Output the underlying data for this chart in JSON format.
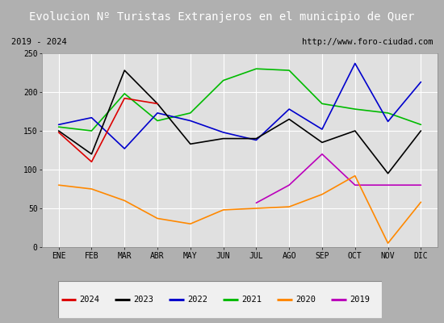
{
  "title": "Evolucion Nº Turistas Extranjeros en el municipio de Quer",
  "subtitle_left": "2019 - 2024",
  "subtitle_right": "http://www.foro-ciudad.com",
  "months": [
    "ENE",
    "FEB",
    "MAR",
    "ABR",
    "MAY",
    "JUN",
    "JUL",
    "AGO",
    "SEP",
    "OCT",
    "NOV",
    "DIC"
  ],
  "ylim": [
    0,
    250
  ],
  "yticks": [
    0,
    50,
    100,
    150,
    200,
    250
  ],
  "series": {
    "2024": {
      "color": "#dd0000",
      "data": [
        148,
        110,
        192,
        185,
        null,
        null,
        null,
        null,
        null,
        null,
        null,
        null
      ]
    },
    "2023": {
      "color": "#000000",
      "data": [
        150,
        120,
        228,
        185,
        133,
        140,
        140,
        165,
        135,
        150,
        95,
        150
      ]
    },
    "2022": {
      "color": "#0000cc",
      "data": [
        158,
        167,
        127,
        173,
        163,
        148,
        138,
        178,
        152,
        237,
        162,
        213
      ]
    },
    "2021": {
      "color": "#00bb00",
      "data": [
        155,
        150,
        198,
        163,
        173,
        215,
        230,
        228,
        185,
        178,
        173,
        158
      ]
    },
    "2020": {
      "color": "#ff8800",
      "data": [
        80,
        75,
        60,
        37,
        30,
        48,
        50,
        52,
        68,
        92,
        5,
        58
      ]
    },
    "2019": {
      "color": "#bb00bb",
      "data": [
        null,
        null,
        null,
        null,
        null,
        null,
        57,
        80,
        120,
        80,
        80,
        80
      ]
    }
  },
  "title_bg_color": "#4a8ed4",
  "title_text_color": "#ffffff",
  "plot_bg_color": "#e0e0e0",
  "grid_color": "#ffffff",
  "outer_bg_color": "#b0b0b0",
  "subtitle_bg_color": "#d8d8d8",
  "legend_bg_color": "#f0f0f0"
}
